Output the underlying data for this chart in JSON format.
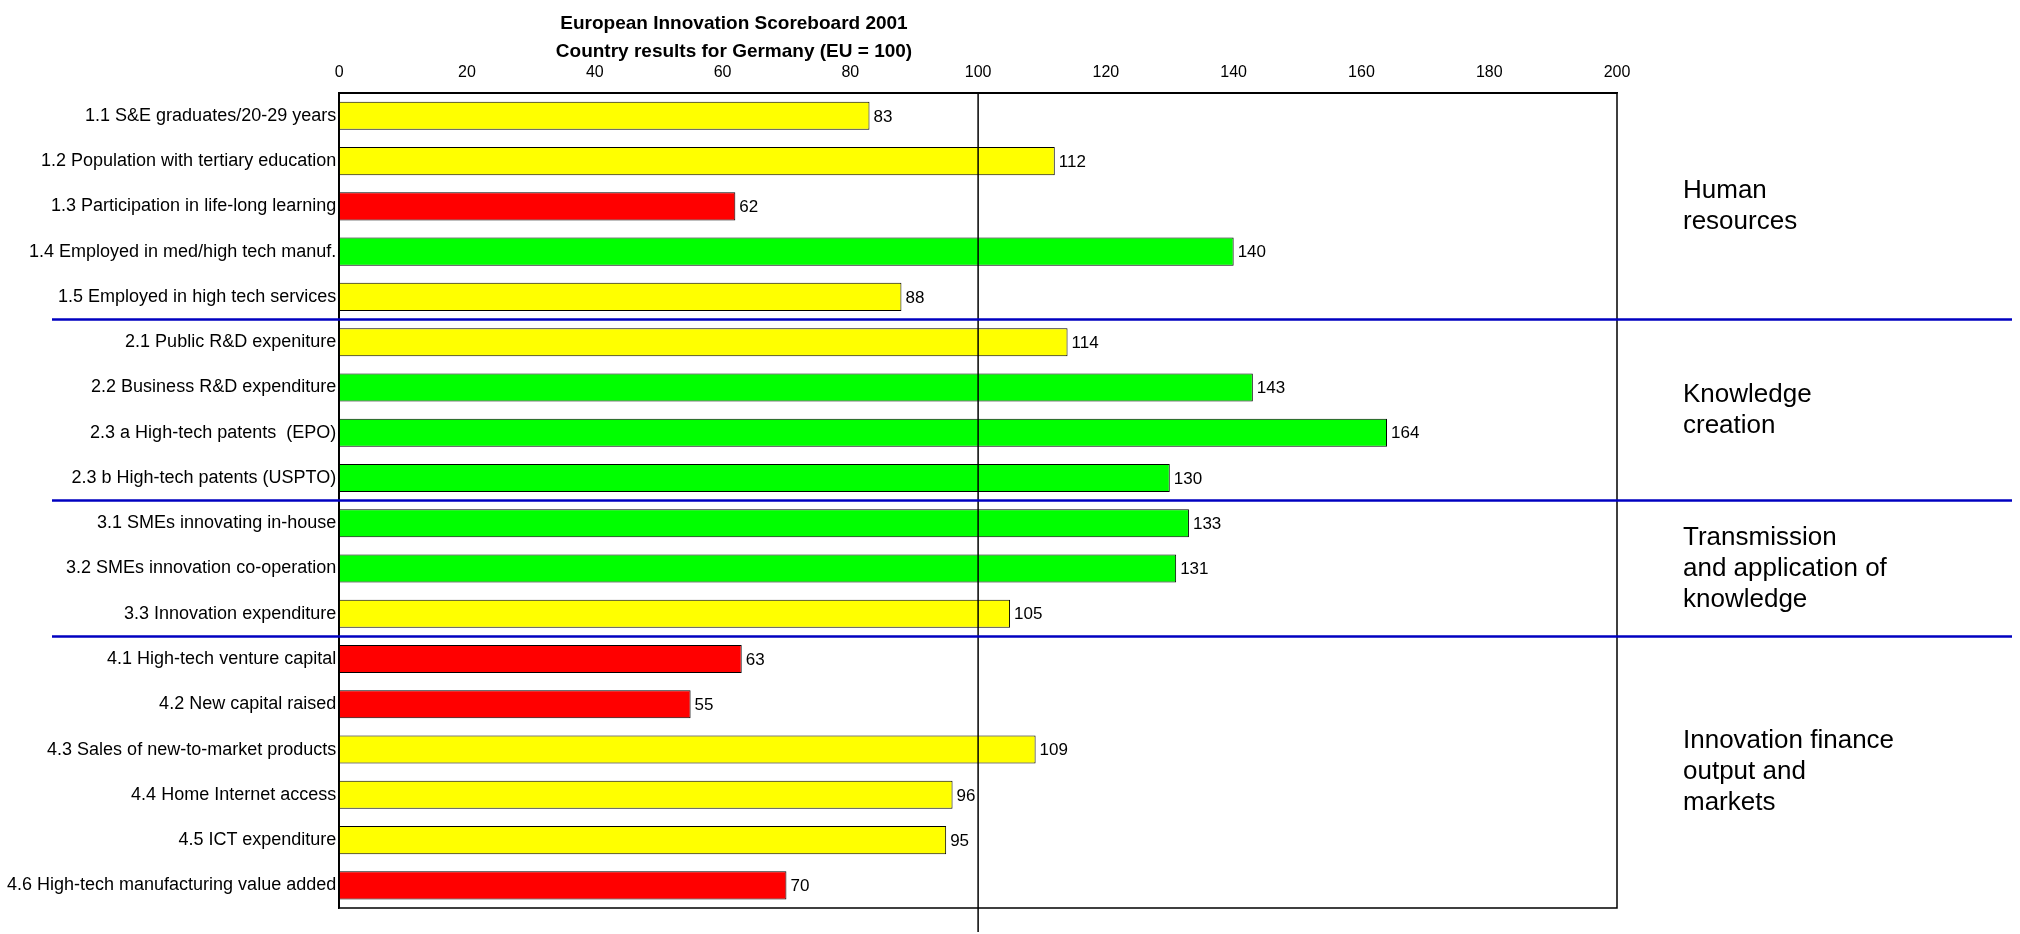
{
  "chart_data": {
    "type": "bar",
    "orientation": "horizontal",
    "title": "European Innovation Scoreboard 2001",
    "subtitle": "Country results for Germany (EU = 100)",
    "categories": [
      "1.1 S&E graduates/20-29 years",
      "1.2 Population with tertiary education",
      "1.3 Participation in life-long learning",
      "1.4 Employed in med/high tech manuf.",
      "1.5 Employed in high tech services",
      "2.1 Public R&D expeniture",
      "2.2 Business R&D expenditure",
      "2.3 a High-tech patents  (EPO)",
      "2.3 b High-tech patents (USPTO)",
      "3.1 SMEs innovating in-house",
      "3.2 SMEs innovation co-operation",
      "3.3 Innovation expenditure",
      "4.1 High-tech venture capital",
      "4.2 New capital raised",
      "4.3 Sales of new-to-market products",
      "4.4 Home Internet access",
      "4.5 ICT expenditure",
      "4.6 High-tech manufacturing value added"
    ],
    "values": [
      83,
      112,
      62,
      140,
      88,
      114,
      143,
      164,
      130,
      133,
      131,
      105,
      63,
      55,
      109,
      96,
      95,
      70
    ],
    "colors": [
      "#ffff00",
      "#ffff00",
      "#ff0000",
      "#00ff00",
      "#ffff00",
      "#ffff00",
      "#00ff00",
      "#00ff00",
      "#00ff00",
      "#00ff00",
      "#00ff00",
      "#ffff00",
      "#ff0000",
      "#ff0000",
      "#ffff00",
      "#ffff00",
      "#ffff00",
      "#ff0000"
    ],
    "xlim": [
      0,
      200
    ],
    "xticks": [
      0,
      20,
      40,
      60,
      80,
      100,
      120,
      140,
      160,
      180,
      200
    ],
    "grid": false,
    "legend": false,
    "data_labels": true,
    "ref_lines": [
      {
        "axis": "x",
        "value": 100,
        "color": "#000000"
      }
    ],
    "annotations": [
      "Human\nresources",
      "Knowledge\ncreation",
      "Transmission\nand application of\nknowledge",
      "Innovation finance\noutput and\nmarkets"
    ]
  }
}
